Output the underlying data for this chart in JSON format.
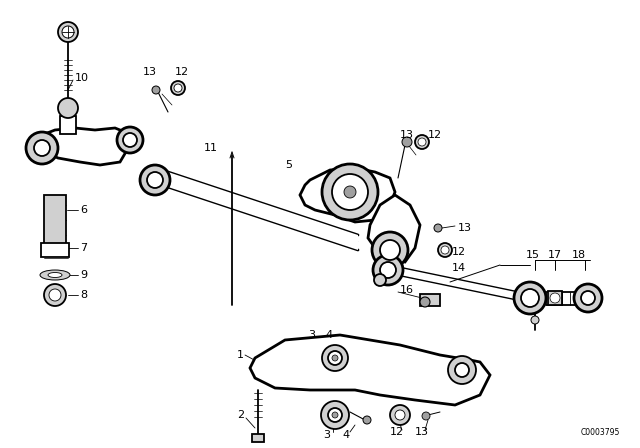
{
  "bg_color": "#ffffff",
  "fig_width": 6.4,
  "fig_height": 4.48,
  "dpi": 100,
  "watermark": "C0003795",
  "line_color": "#000000",
  "gray_light": "#d0d0d0",
  "gray_med": "#a0a0a0",
  "gray_dark": "#606060"
}
